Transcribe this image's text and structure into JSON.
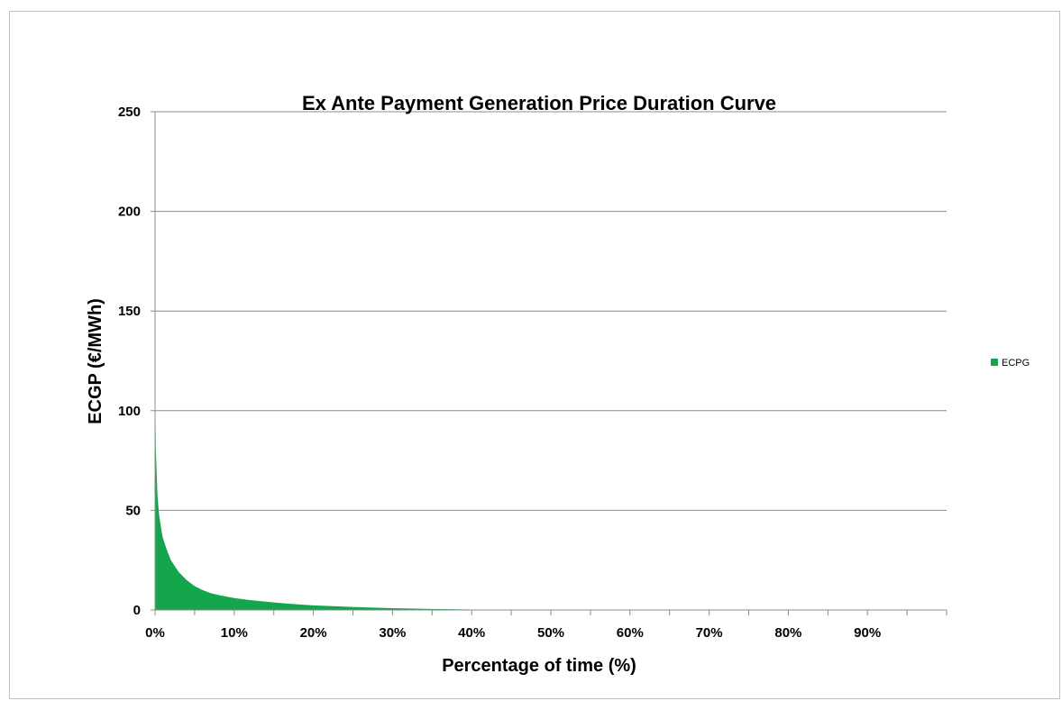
{
  "chart_data": {
    "type": "area",
    "title": "Ex Ante Payment Generation Price Duration Curve",
    "xlabel": "Percentage of time (%)",
    "ylabel": "ECGP (€/MWh)",
    "xlim": [
      0,
      100
    ],
    "ylim": [
      0,
      250
    ],
    "x_ticks": [
      0,
      10,
      20,
      30,
      40,
      50,
      60,
      70,
      80,
      90
    ],
    "x_tick_labels": [
      "0%",
      "10%",
      "20%",
      "30%",
      "40%",
      "50%",
      "60%",
      "70%",
      "80%",
      "90%"
    ],
    "y_ticks": [
      0,
      50,
      100,
      150,
      200,
      250
    ],
    "y_tick_labels": [
      "0",
      "50",
      "100",
      "150",
      "200",
      "250"
    ],
    "grid": true,
    "legend_position": "right",
    "colors": {
      "series": "#14a64c",
      "grid": "#8c8c8c",
      "axis": "#8c8c8c"
    },
    "series": [
      {
        "name": "ECPG",
        "x": [
          0,
          0.1,
          0.3,
          0.5,
          0.8,
          1,
          1.5,
          2,
          2.5,
          3,
          4,
          5,
          6,
          7,
          8,
          10,
          12,
          15,
          18,
          20,
          25,
          30,
          35,
          40,
          42,
          45,
          50,
          100
        ],
        "values": [
          115,
          80,
          58,
          48,
          40,
          36,
          30,
          25,
          22,
          19,
          15,
          12,
          10,
          8.5,
          7.5,
          6,
          5,
          3.8,
          2.8,
          2.3,
          1.5,
          0.9,
          0.5,
          0.25,
          0.1,
          0,
          0,
          0
        ]
      }
    ]
  }
}
